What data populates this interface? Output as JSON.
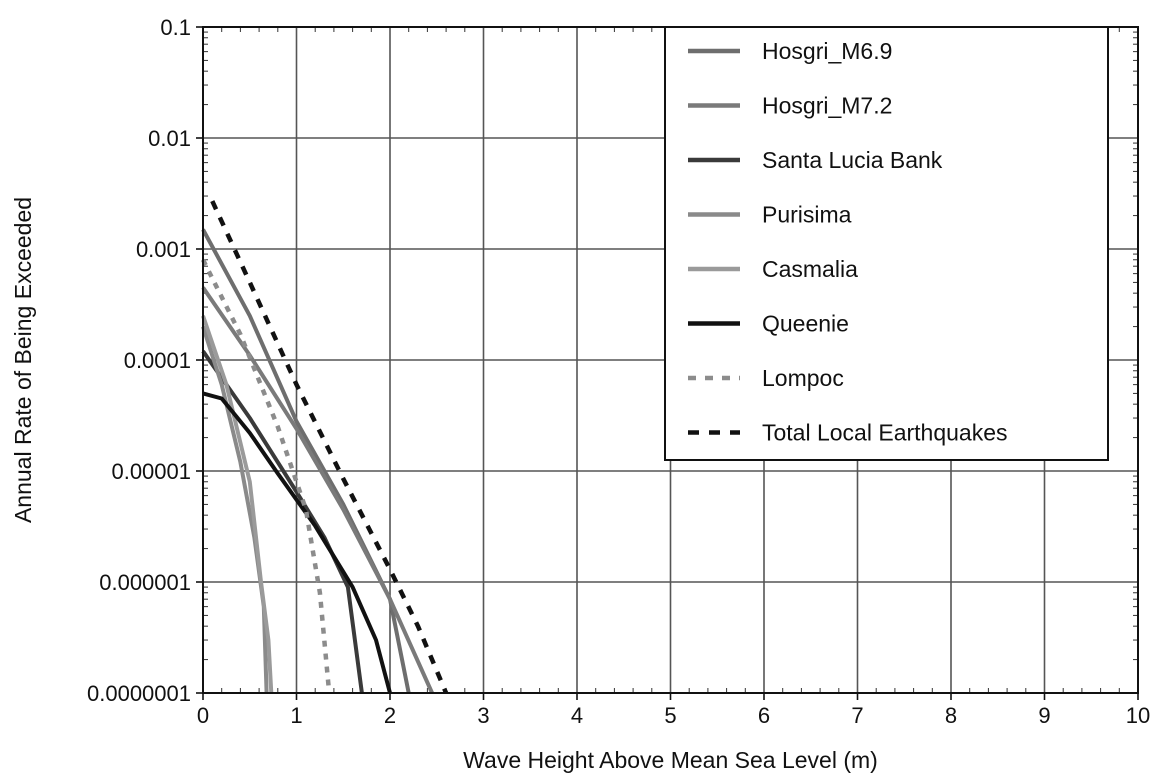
{
  "chart_data": {
    "type": "line",
    "title": "",
    "xlabel": "Wave Height Above Mean Sea Level (m)",
    "ylabel": "Annual Rate of Being Exceeded",
    "xlim": [
      0,
      10
    ],
    "ylim": [
      1e-07,
      0.1
    ],
    "yscale": "log",
    "grid": true,
    "legend_position": "top-right",
    "x_ticks": [
      "0",
      "1",
      "2",
      "3",
      "4",
      "5",
      "6",
      "7",
      "8",
      "9",
      "10"
    ],
    "y_ticks": [
      "0.0000001",
      "0.000001",
      "0.00001",
      "0.0001",
      "0.001",
      "0.01",
      "0.1"
    ],
    "series": [
      {
        "name": "Hosgri_M6.9",
        "color": "#6e6e6e",
        "dash": "solid",
        "x": [
          0,
          0.5,
          1.0,
          1.5,
          2.0,
          2.2
        ],
        "y": [
          0.0015,
          0.00025,
          2.8e-05,
          5e-06,
          7e-07,
          1e-07
        ]
      },
      {
        "name": "Hosgri_M7.2",
        "color": "#7a7a7a",
        "dash": "solid",
        "x": [
          0,
          0.5,
          1.0,
          1.5,
          2.0,
          2.45
        ],
        "y": [
          0.00045,
          0.00011,
          2.4e-05,
          4.5e-06,
          7e-07,
          1e-07
        ]
      },
      {
        "name": "Santa Lucia Bank",
        "color": "#3a3a3a",
        "dash": "solid",
        "x": [
          0,
          0.5,
          1.0,
          1.3,
          1.55,
          1.7
        ],
        "y": [
          0.00012,
          3e-05,
          6.5e-06,
          2.5e-06,
          9e-07,
          1e-07
        ]
      },
      {
        "name": "Purisima",
        "color": "#8a8a8a",
        "dash": "solid",
        "x": [
          0,
          0.2,
          0.4,
          0.55,
          0.65,
          0.68
        ],
        "y": [
          0.0002,
          6e-05,
          1.2e-05,
          2.5e-06,
          6e-07,
          1e-07
        ]
      },
      {
        "name": "Casmalia",
        "color": "#9a9a9a",
        "dash": "solid",
        "x": [
          0,
          0.25,
          0.5,
          0.62,
          0.7,
          0.73
        ],
        "y": [
          0.00025,
          6e-05,
          8e-06,
          1e-06,
          3e-07,
          1e-07
        ]
      },
      {
        "name": "Queenie",
        "color": "#111111",
        "dash": "solid",
        "x": [
          0,
          0.2,
          0.5,
          0.8,
          1.2,
          1.6,
          1.85,
          2.0
        ],
        "y": [
          5e-05,
          4.5e-05,
          2.2e-05,
          9.5e-06,
          3.2e-06,
          9e-07,
          3e-07,
          1e-07
        ]
      },
      {
        "name": "Lompoc",
        "color": "#8c8c8c",
        "dash": "dotted",
        "x": [
          0,
          0.4,
          0.8,
          1.1,
          1.25,
          1.35
        ],
        "y": [
          0.0008,
          0.00017,
          2.5e-05,
          4.5e-06,
          8e-07,
          1e-07
        ]
      },
      {
        "name": "Total Local Earthquakes",
        "color": "#111111",
        "dash": "dashed",
        "x": [
          0.1,
          0.5,
          1.0,
          1.5,
          2.0,
          2.3,
          2.6
        ],
        "y": [
          0.0027,
          0.0005,
          6e-05,
          8.5e-06,
          1.3e-06,
          4e-07,
          1e-07
        ]
      }
    ]
  }
}
